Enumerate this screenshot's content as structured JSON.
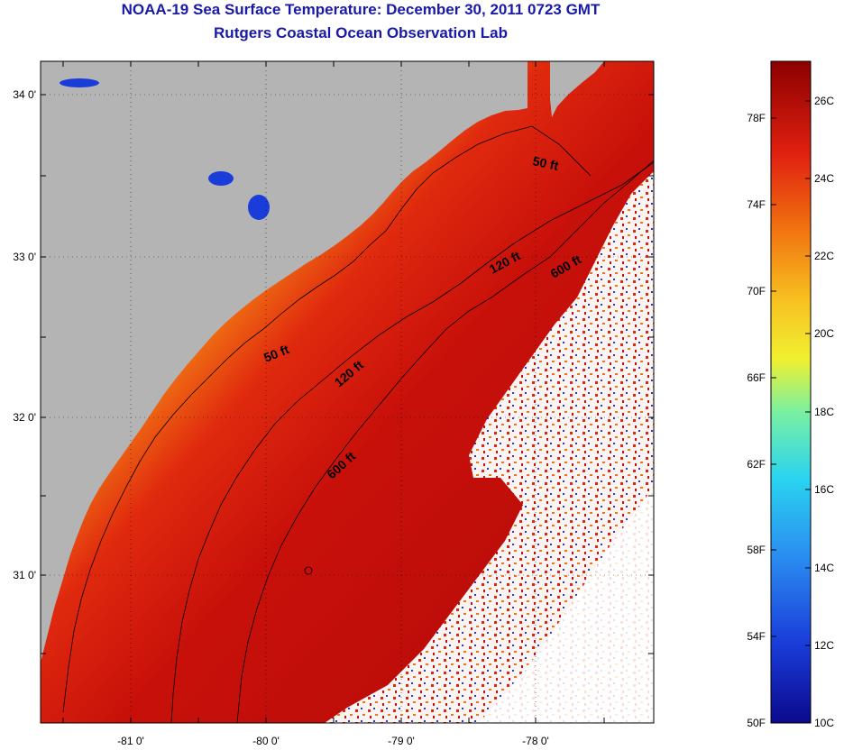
{
  "title": "NOAA-19 Sea Surface Temperature:  December 30, 2011 0723 GMT",
  "subtitle": "Rutgers Coastal Ocean Observation Lab",
  "map": {
    "lon_ticks": [
      "-81 0'",
      "-80 0'",
      "-79 0'",
      "-78 0'"
    ],
    "lat_ticks": [
      "34 0'",
      "33 0'",
      "32 0'",
      "31 0'"
    ],
    "contour_labels": [
      {
        "id": "contour-50ft-north",
        "text": "50 ft"
      },
      {
        "id": "contour-120ft-north",
        "text": "120 ft"
      },
      {
        "id": "contour-600ft-north",
        "text": "600 ft"
      },
      {
        "id": "contour-50ft-south",
        "text": "50 ft"
      },
      {
        "id": "contour-120ft-south",
        "text": "120 ft"
      },
      {
        "id": "contour-600ft-south",
        "text": "600 ft"
      }
    ]
  },
  "colorbar": {
    "fahrenheit_labels": [
      "78F",
      "74F",
      "70F",
      "66F",
      "62F",
      "58F",
      "54F",
      "50F"
    ],
    "celsius_labels": [
      "26C",
      "24C",
      "22C",
      "20C",
      "18C",
      "16C",
      "14C",
      "12C",
      "10C"
    ]
  },
  "colors": {
    "land": "#b4b4b4",
    "title": "#1a1aa8",
    "cloud": "#ffffff"
  }
}
